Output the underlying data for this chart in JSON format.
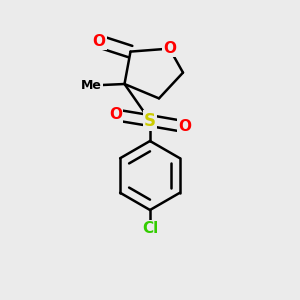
{
  "bg_color": "#ebebeb",
  "atom_colors": {
    "O": "#ff0000",
    "S": "#cccc00",
    "Cl": "#33cc00",
    "C": "#000000"
  },
  "bond_color": "#000000",
  "bond_width": 1.8,
  "figure_size": [
    3.0,
    3.0
  ],
  "dpi": 100
}
